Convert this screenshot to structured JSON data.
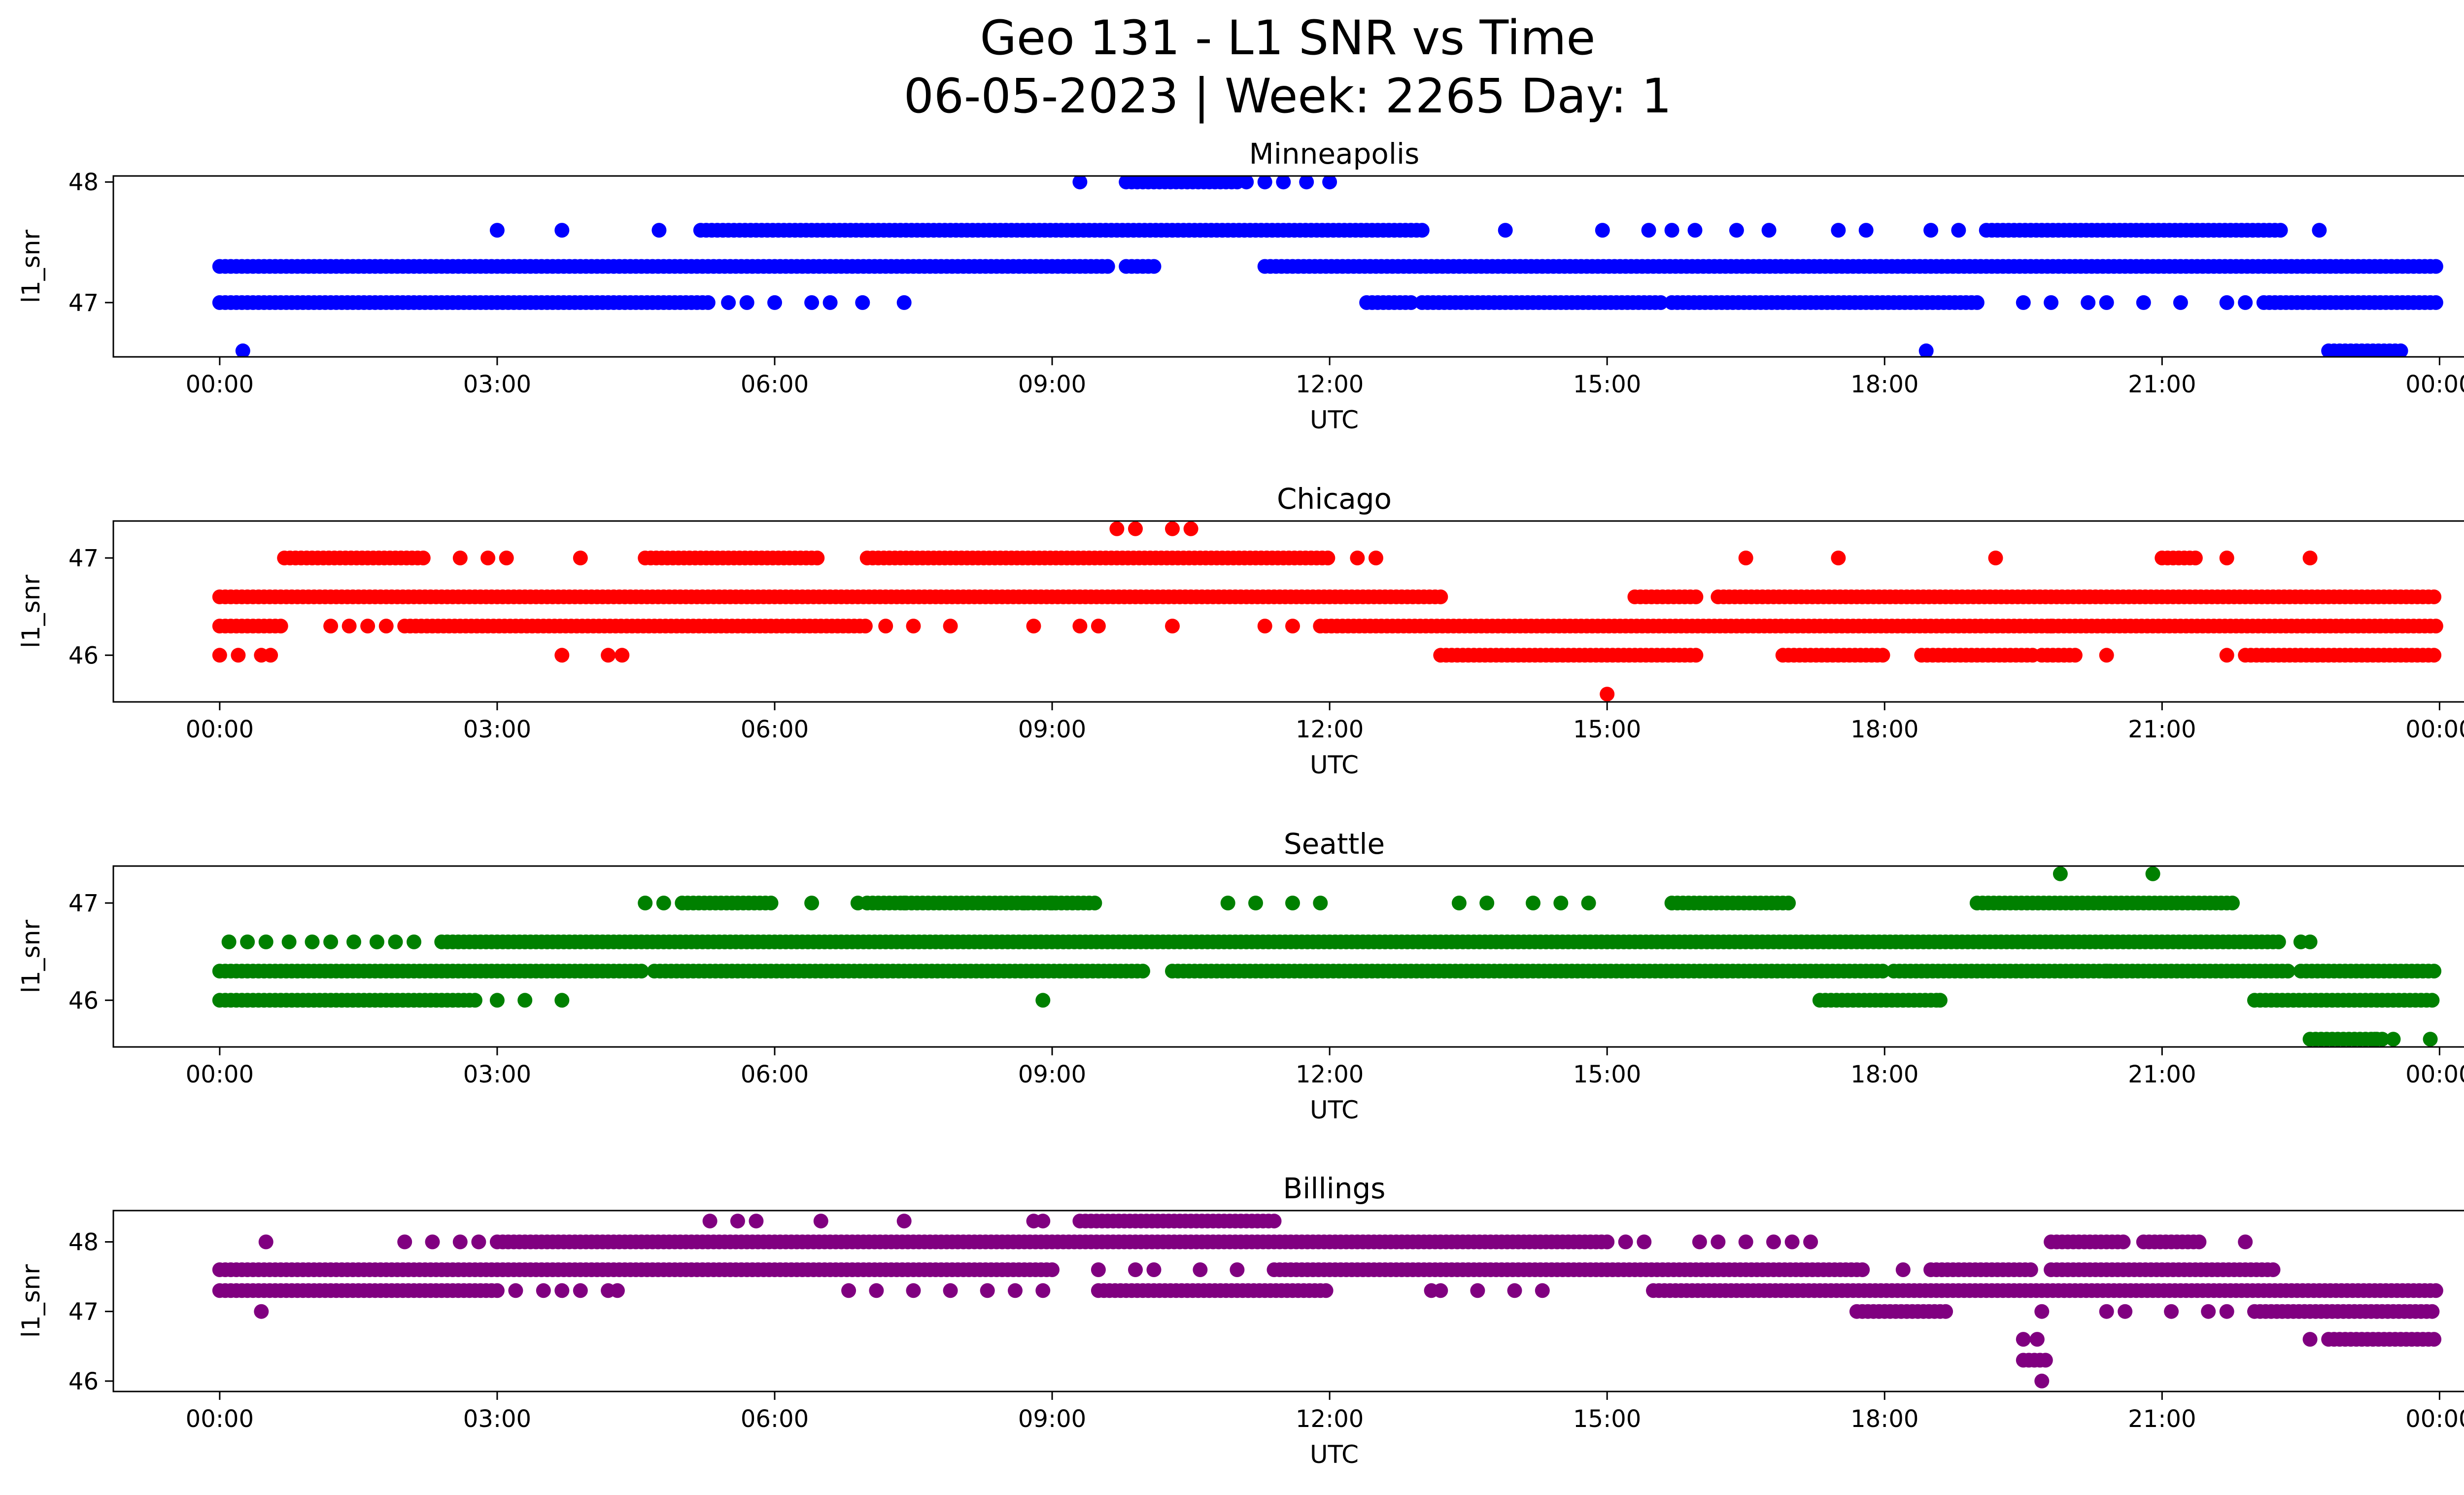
{
  "title_line1": "Geo 131 - L1 SNR vs Time",
  "title_line2": "06-05-2023 | Week: 2265 Day: 1",
  "chart_data": [
    {
      "type": "scatter",
      "title": "Minneapolis",
      "xlabel": "UTC",
      "ylabel": "l1_snr",
      "color": "#0000ff",
      "xticks": [
        "00:00",
        "03:00",
        "06:00",
        "09:00",
        "12:00",
        "15:00",
        "18:00",
        "21:00",
        "00:00"
      ],
      "yticks": [
        47,
        48
      ],
      "ylim": [
        46.55,
        48.05
      ],
      "xlim_hours": [
        -1.15,
        25.25
      ],
      "segments": [
        {
          "y": 47.3,
          "ranges": [
            [
              0.0,
              9.6
            ],
            [
              9.8,
              10.1
            ],
            [
              11.3,
              23.97
            ]
          ]
        },
        {
          "y": 47.0,
          "ranges": [
            [
              0.0,
              5.3
            ],
            [
              12.4,
              12.9
            ],
            [
              13.0,
              15.6
            ],
            [
              15.7,
              19.0
            ],
            [
              22.1,
              23.97
            ]
          ]
        },
        {
          "y": 47.6,
          "ranges": [
            [
              5.2,
              13.0
            ],
            [
              19.1,
              22.3
            ]
          ]
        },
        {
          "y": 48.0,
          "ranges": [
            [
              9.8,
              11.0
            ]
          ]
        },
        {
          "y": 46.6,
          "ranges": [
            [
              22.8,
              23.6
            ]
          ]
        }
      ],
      "points": [
        [
          0.25,
          46.6
        ],
        [
          3.0,
          47.6
        ],
        [
          3.7,
          47.6
        ],
        [
          4.75,
          47.6
        ],
        [
          9.3,
          48.0
        ],
        [
          11.1,
          48.0
        ],
        [
          11.3,
          48.0
        ],
        [
          11.5,
          48.0
        ],
        [
          11.75,
          48.0
        ],
        [
          12.0,
          48.0
        ],
        [
          13.9,
          47.6
        ],
        [
          14.95,
          47.6
        ],
        [
          15.45,
          47.6
        ],
        [
          15.7,
          47.6
        ],
        [
          15.95,
          47.6
        ],
        [
          16.4,
          47.6
        ],
        [
          16.75,
          47.6
        ],
        [
          17.5,
          47.6
        ],
        [
          17.8,
          47.6
        ],
        [
          18.5,
          47.6
        ],
        [
          18.8,
          47.6
        ],
        [
          22.7,
          47.6
        ],
        [
          18.45,
          46.6
        ],
        [
          5.5,
          47.0
        ],
        [
          5.7,
          47.0
        ],
        [
          6.0,
          47.0
        ],
        [
          6.4,
          47.0
        ],
        [
          6.6,
          47.0
        ],
        [
          6.95,
          47.0
        ],
        [
          7.4,
          47.0
        ],
        [
          19.5,
          47.0
        ],
        [
          19.8,
          47.0
        ],
        [
          20.2,
          47.0
        ],
        [
          20.4,
          47.0
        ],
        [
          20.8,
          47.0
        ],
        [
          21.2,
          47.0
        ],
        [
          21.7,
          47.0
        ],
        [
          21.9,
          47.0
        ]
      ]
    },
    {
      "type": "scatter",
      "title": "Chicago",
      "xlabel": "UTC",
      "ylabel": "l1_snr",
      "color": "#ff0000",
      "xticks": [
        "00:00",
        "03:00",
        "06:00",
        "09:00",
        "12:00",
        "15:00",
        "18:00",
        "21:00",
        "00:00"
      ],
      "yticks": [
        46,
        47
      ],
      "ylim": [
        45.52,
        47.38
      ],
      "xlim_hours": [
        -1.15,
        25.25
      ],
      "segments": [
        {
          "y": 46.6,
          "ranges": [
            [
              0.0,
              13.2
            ],
            [
              15.3,
              16.0
            ],
            [
              16.2,
              23.97
            ]
          ]
        },
        {
          "y": 46.3,
          "ranges": [
            [
              0.0,
              0.7
            ],
            [
              2.0,
              7.0
            ],
            [
              11.9,
              23.97
            ]
          ]
        },
        {
          "y": 47.0,
          "ranges": [
            [
              0.7,
              2.2
            ],
            [
              4.6,
              6.5
            ],
            [
              7.0,
              12.0
            ],
            [
              21.0,
              21.4
            ]
          ]
        },
        {
          "y": 46.0,
          "ranges": [
            [
              13.2,
              16.0
            ],
            [
              16.9,
              18.0
            ],
            [
              18.4,
              19.6
            ],
            [
              19.7,
              20.1
            ],
            [
              21.9,
              23.97
            ]
          ]
        }
      ],
      "points": [
        [
          0.0,
          46.0
        ],
        [
          0.2,
          46.0
        ],
        [
          0.45,
          46.0
        ],
        [
          0.55,
          46.0
        ],
        [
          1.2,
          46.3
        ],
        [
          1.4,
          46.3
        ],
        [
          1.6,
          46.3
        ],
        [
          1.8,
          46.3
        ],
        [
          7.2,
          46.3
        ],
        [
          7.5,
          46.3
        ],
        [
          7.9,
          46.3
        ],
        [
          8.8,
          46.3
        ],
        [
          9.3,
          46.3
        ],
        [
          9.5,
          46.3
        ],
        [
          10.3,
          46.3
        ],
        [
          11.3,
          46.3
        ],
        [
          11.6,
          46.3
        ],
        [
          3.7,
          46.0
        ],
        [
          4.2,
          46.0
        ],
        [
          4.35,
          46.0
        ],
        [
          2.6,
          47.0
        ],
        [
          2.9,
          47.0
        ],
        [
          3.1,
          47.0
        ],
        [
          3.9,
          47.0
        ],
        [
          12.3,
          47.0
        ],
        [
          12.5,
          47.0
        ],
        [
          16.5,
          47.0
        ],
        [
          17.5,
          47.0
        ],
        [
          19.2,
          47.0
        ],
        [
          21.7,
          47.0
        ],
        [
          22.6,
          47.0
        ],
        [
          9.7,
          47.3
        ],
        [
          9.9,
          47.3
        ],
        [
          10.3,
          47.3
        ],
        [
          10.5,
          47.3
        ],
        [
          15.0,
          45.6
        ],
        [
          20.4,
          46.0
        ],
        [
          21.7,
          46.0
        ],
        [
          19.8,
          46.3
        ]
      ]
    },
    {
      "type": "scatter",
      "title": "Seattle",
      "xlabel": "UTC",
      "ylabel": "l1_snr",
      "color": "#008000",
      "xticks": [
        "00:00",
        "03:00",
        "06:00",
        "09:00",
        "12:00",
        "15:00",
        "18:00",
        "21:00",
        "00:00"
      ],
      "yticks": [
        46,
        47
      ],
      "ylim": [
        45.52,
        47.38
      ],
      "xlim_hours": [
        -1.15,
        25.25
      ],
      "segments": [
        {
          "y": 46.3,
          "ranges": [
            [
              0.0,
              4.6
            ],
            [
              4.7,
              10.0
            ],
            [
              10.3,
              18.0
            ],
            [
              18.1,
              22.4
            ],
            [
              22.5,
              23.97
            ]
          ]
        },
        {
          "y": 46.6,
          "ranges": [
            [
              2.4,
              22.3
            ]
          ]
        },
        {
          "y": 46.0,
          "ranges": [
            [
              0.0,
              2.8
            ],
            [
              17.3,
              18.6
            ],
            [
              22.0,
              23.97
            ]
          ]
        },
        {
          "y": 47.0,
          "ranges": [
            [
              5.0,
              6.0
            ],
            [
              7.0,
              9.5
            ],
            [
              15.7,
              17.0
            ],
            [
              19.0,
              21.8
            ]
          ]
        },
        {
          "y": 45.6,
          "ranges": [
            [
              22.6,
              23.4
            ]
          ]
        }
      ],
      "points": [
        [
          0.1,
          46.6
        ],
        [
          0.3,
          46.6
        ],
        [
          0.5,
          46.6
        ],
        [
          0.75,
          46.6
        ],
        [
          1.0,
          46.6
        ],
        [
          1.2,
          46.6
        ],
        [
          1.45,
          46.6
        ],
        [
          1.7,
          46.6
        ],
        [
          1.9,
          46.6
        ],
        [
          2.1,
          46.6
        ],
        [
          3.0,
          46.0
        ],
        [
          3.3,
          46.0
        ],
        [
          3.7,
          46.0
        ],
        [
          4.6,
          47.0
        ],
        [
          4.8,
          47.0
        ],
        [
          6.4,
          47.0
        ],
        [
          6.9,
          47.0
        ],
        [
          7.4,
          47.0
        ],
        [
          8.5,
          47.0
        ],
        [
          8.7,
          47.0
        ],
        [
          9.0,
          47.0
        ],
        [
          10.9,
          47.0
        ],
        [
          11.2,
          47.0
        ],
        [
          11.6,
          47.0
        ],
        [
          11.9,
          47.0
        ],
        [
          13.4,
          47.0
        ],
        [
          13.7,
          47.0
        ],
        [
          14.2,
          47.0
        ],
        [
          14.5,
          47.0
        ],
        [
          14.8,
          47.0
        ],
        [
          8.9,
          46.0
        ],
        [
          19.9,
          47.3
        ],
        [
          20.9,
          47.3
        ],
        [
          22.5,
          46.6
        ],
        [
          22.6,
          46.6
        ],
        [
          23.3,
          45.6
        ],
        [
          23.5,
          45.6
        ],
        [
          23.9,
          45.6
        ],
        [
          20.4,
          46.3
        ],
        [
          18.6,
          46.0
        ]
      ]
    },
    {
      "type": "scatter",
      "title": "Billings",
      "xlabel": "UTC",
      "ylabel": "l1_snr",
      "color": "#800080",
      "xticks": [
        "00:00",
        "03:00",
        "06:00",
        "09:00",
        "12:00",
        "15:00",
        "18:00",
        "21:00",
        "00:00"
      ],
      "yticks": [
        46,
        47,
        48
      ],
      "ylim": [
        45.85,
        48.45
      ],
      "xlim_hours": [
        -1.15,
        25.25
      ],
      "segments": [
        {
          "y": 47.6,
          "ranges": [
            [
              0.0,
              9.0
            ],
            [
              11.4,
              17.8
            ],
            [
              18.5,
              19.6
            ],
            [
              19.8,
              22.2
            ]
          ]
        },
        {
          "y": 47.3,
          "ranges": [
            [
              0.0,
              3.0
            ],
            [
              9.5,
              12.0
            ],
            [
              15.5,
              23.97
            ]
          ]
        },
        {
          "y": 48.0,
          "ranges": [
            [
              3.0,
              15.0
            ],
            [
              19.8,
              20.6
            ],
            [
              20.8,
              21.4
            ]
          ]
        },
        {
          "y": 48.3,
          "ranges": [
            [
              9.3,
              11.4
            ]
          ]
        },
        {
          "y": 47.0,
          "ranges": [
            [
              17.7,
              18.7
            ],
            [
              22.0,
              23.97
            ]
          ]
        },
        {
          "y": 46.6,
          "ranges": [
            [
              22.8,
              23.97
            ]
          ]
        },
        {
          "y": 46.3,
          "ranges": [
            [
              19.5,
              19.75
            ]
          ]
        }
      ],
      "points": [
        [
          0.45,
          47.0
        ],
        [
          0.5,
          48.0
        ],
        [
          2.0,
          48.0
        ],
        [
          2.3,
          48.0
        ],
        [
          2.6,
          48.0
        ],
        [
          2.8,
          48.0
        ],
        [
          3.2,
          47.3
        ],
        [
          3.5,
          47.3
        ],
        [
          3.7,
          47.3
        ],
        [
          3.9,
          47.3
        ],
        [
          4.2,
          47.3
        ],
        [
          4.3,
          47.3
        ],
        [
          5.3,
          48.3
        ],
        [
          5.6,
          48.3
        ],
        [
          5.8,
          48.3
        ],
        [
          6.5,
          48.3
        ],
        [
          7.4,
          48.3
        ],
        [
          8.8,
          48.3
        ],
        [
          8.9,
          48.3
        ],
        [
          9.5,
          47.6
        ],
        [
          9.9,
          47.6
        ],
        [
          10.1,
          47.6
        ],
        [
          10.6,
          47.6
        ],
        [
          11.0,
          47.6
        ],
        [
          6.8,
          47.3
        ],
        [
          7.1,
          47.3
        ],
        [
          7.5,
          47.3
        ],
        [
          7.9,
          47.3
        ],
        [
          8.3,
          47.3
        ],
        [
          8.6,
          47.3
        ],
        [
          8.9,
          47.3
        ],
        [
          13.1,
          47.3
        ],
        [
          13.2,
          47.3
        ],
        [
          13.6,
          47.3
        ],
        [
          14.0,
          47.3
        ],
        [
          14.3,
          47.3
        ],
        [
          15.2,
          48.0
        ],
        [
          15.4,
          48.0
        ],
        [
          16.0,
          48.0
        ],
        [
          16.2,
          48.0
        ],
        [
          16.5,
          48.0
        ],
        [
          16.8,
          48.0
        ],
        [
          17.0,
          48.0
        ],
        [
          17.2,
          48.0
        ],
        [
          18.2,
          47.6
        ],
        [
          19.5,
          46.6
        ],
        [
          19.65,
          46.6
        ],
        [
          19.7,
          46.0
        ],
        [
          19.7,
          47.0
        ],
        [
          20.4,
          47.0
        ],
        [
          20.6,
          47.0
        ],
        [
          21.1,
          47.0
        ],
        [
          21.5,
          47.0
        ],
        [
          21.7,
          47.0
        ],
        [
          21.9,
          48.0
        ],
        [
          22.6,
          46.6
        ]
      ]
    }
  ]
}
